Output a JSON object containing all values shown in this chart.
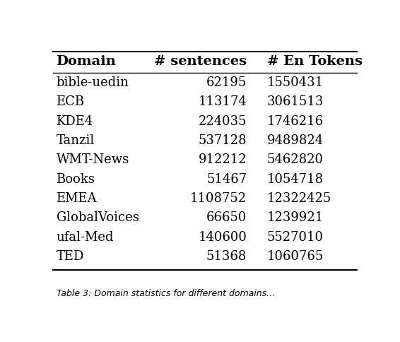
{
  "headers": [
    "Domain",
    "# sentences",
    "# En Tokens"
  ],
  "rows": [
    [
      "bible-uedin",
      "62195",
      "1550431"
    ],
    [
      "ECB",
      "113174",
      "3061513"
    ],
    [
      "KDE4",
      "224035",
      "1746216"
    ],
    [
      "Tanzil",
      "537128",
      "9489824"
    ],
    [
      "WMT-News",
      "912212",
      "5462820"
    ],
    [
      "Books",
      "51467",
      "1054718"
    ],
    [
      "EMEA",
      "1108752",
      "12322425"
    ],
    [
      "GlobalVoices",
      "66650",
      "1239921"
    ],
    [
      "ufal-Med",
      "140600",
      "5527010"
    ],
    [
      "TED",
      "51368",
      "1060765"
    ]
  ],
  "header_fontsize": 14,
  "body_fontsize": 13,
  "background_color": "#ffffff",
  "text_color": "#000000",
  "caption_text": "Table 3: Domain statistics for different domains..."
}
